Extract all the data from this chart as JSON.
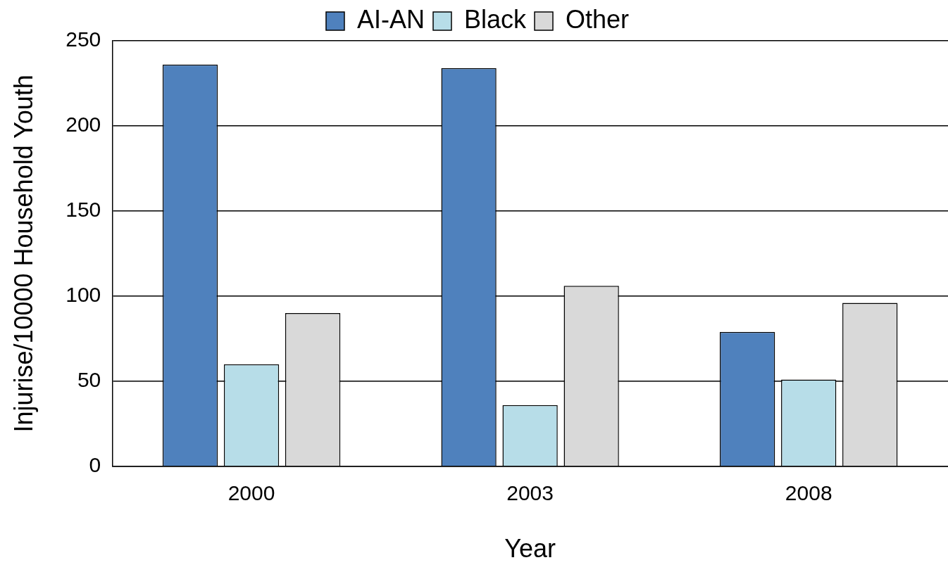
{
  "chart_data": {
    "type": "bar",
    "xlabel": "Year",
    "ylabel": "Injurise/10000 Household Youth",
    "categories": [
      "2000",
      "2003",
      "2008"
    ],
    "series": [
      {
        "name": "AI-AN",
        "color": "#4f81bd",
        "values": [
          236,
          234,
          79
        ]
      },
      {
        "name": "Black",
        "color": "#b7dde8",
        "values": [
          60,
          36,
          51
        ]
      },
      {
        "name": "Other",
        "color": "#d9d9d9",
        "values": [
          90,
          106,
          96
        ]
      }
    ],
    "ylim": [
      0,
      250
    ],
    "yticks": [
      0,
      50,
      100,
      150,
      200,
      250
    ],
    "grid": "y",
    "legend": "top"
  }
}
